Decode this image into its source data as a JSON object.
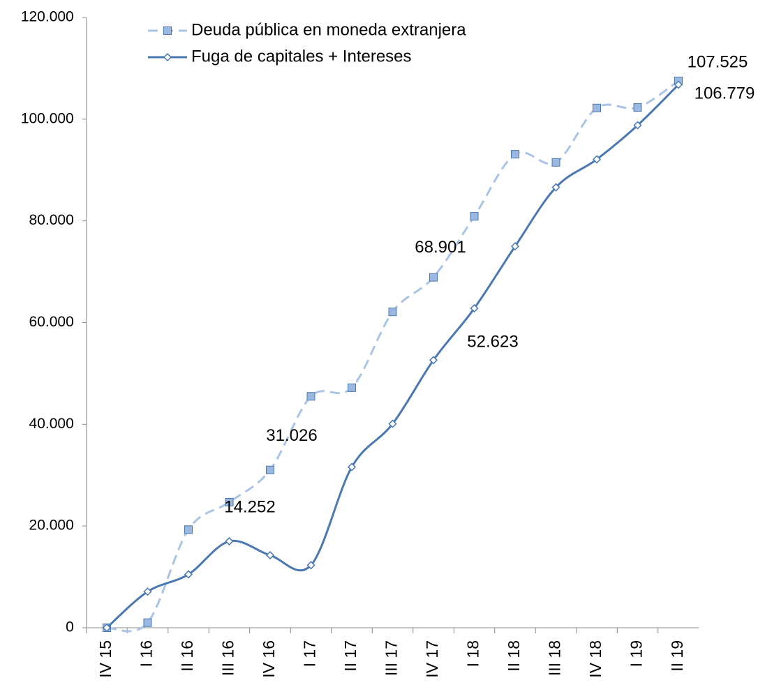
{
  "chart_data": {
    "type": "line",
    "categories": [
      "IV 15",
      "I 16",
      "II 16",
      "III 16",
      "IV 16",
      "I 17",
      "II 17",
      "III 17",
      "IV 17",
      "I 18",
      "II 18",
      "III 18",
      "IV 18",
      "I 19",
      "II 19"
    ],
    "series": [
      {
        "name": "Deuda pública en moneda extranjera",
        "color": "#a9c4e4",
        "marker_color": "#9ab8e0",
        "dashed": true,
        "marker": "square",
        "values": [
          0,
          1000,
          19300,
          24700,
          31026,
          45500,
          47200,
          62100,
          68901,
          80900,
          93100,
          91500,
          102200,
          102300,
          107525
        ],
        "value_labels": [
          null,
          null,
          null,
          null,
          "31.026",
          null,
          null,
          null,
          "68.901",
          null,
          null,
          null,
          null,
          null,
          "107.525"
        ]
      },
      {
        "name": "Fuga de capitales + Intereses",
        "color": "#4a78b0",
        "marker_color": "#ffffff",
        "dashed": false,
        "marker": "diamond",
        "values": [
          0,
          7100,
          10500,
          17000,
          14252,
          12300,
          31600,
          40100,
          52623,
          62800,
          75000,
          86600,
          92100,
          98800,
          106779
        ],
        "value_labels": [
          null,
          null,
          null,
          null,
          "14.252",
          null,
          null,
          null,
          "52.623",
          null,
          null,
          null,
          null,
          null,
          "106.779"
        ]
      }
    ],
    "ylim": [
      0,
      120000
    ],
    "yticks": [
      0,
      {
        "value": 20000,
        "label": "20.000"
      },
      {
        "value": 40000,
        "label": "40.000"
      },
      {
        "value": 60000,
        "label": "60.000"
      },
      {
        "value": 80000,
        "label": "80.000"
      },
      {
        "value": 100000,
        "label": "100.000"
      },
      {
        "value": 120000,
        "label": "120.000"
      }
    ],
    "grid": false,
    "legend": "top-left"
  }
}
